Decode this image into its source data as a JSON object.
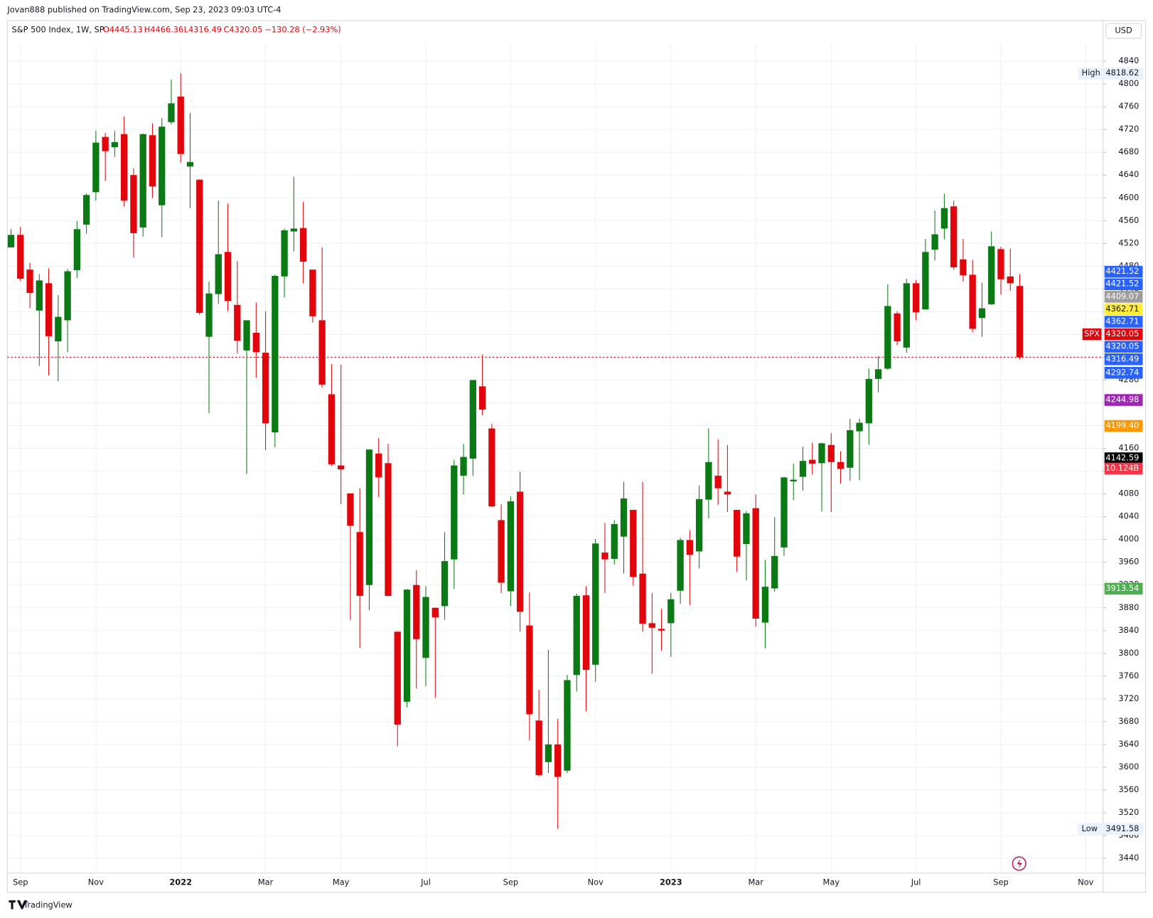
{
  "header": {
    "published": "Jovan888 published on TradingView.com, Sep 23, 2023 09:03 UTC-4",
    "currency": "USD",
    "brand": "TradingView"
  },
  "chart_data": {
    "type": "candlestick",
    "title": "S&P 500 Index, 1W, SP",
    "legend_values": [
      "O4445.13",
      "H4466.36",
      "L4316.49",
      "C4320.05",
      "−130.28 (−2.93%)"
    ],
    "up_color": "#0b7a14",
    "down_color": "#e0060c",
    "categories": [
      null,
      "Sep",
      null,
      null,
      null,
      null,
      null,
      null,
      null,
      "Nov",
      null,
      null,
      null,
      null,
      null,
      null,
      null,
      null,
      "2022",
      null,
      null,
      null,
      null,
      null,
      null,
      null,
      null,
      "Mar",
      null,
      null,
      null,
      null,
      null,
      null,
      null,
      "May",
      null,
      null,
      null,
      null,
      null,
      null,
      null,
      null,
      "Jul",
      null,
      null,
      null,
      null,
      null,
      null,
      null,
      null,
      "Sep",
      null,
      null,
      null,
      null,
      null,
      null,
      null,
      null,
      "Nov",
      null,
      null,
      null,
      null,
      null,
      null,
      null,
      "2023",
      null,
      null,
      null,
      null,
      null,
      null,
      null,
      null,
      "Mar",
      null,
      null,
      null,
      null,
      null,
      null,
      null,
      "May",
      null,
      null,
      null,
      null,
      null,
      null,
      null,
      null,
      "Jul",
      null,
      null,
      null,
      null,
      null,
      null,
      null,
      null,
      "Sep",
      null,
      null,
      null,
      null,
      null,
      null,
      null,
      null,
      "Nov"
    ],
    "open": [
      4513,
      4535,
      4474,
      4402,
      4450,
      4348,
      4385,
      4473,
      4553,
      4610,
      4707,
      4689,
      4712,
      4640,
      4548,
      4710,
      4587,
      4733,
      4778,
      4655,
      4632,
      4356,
      4431,
      4505,
      4412,
      4332,
      4363,
      4328,
      4188,
      4462,
      4541,
      4547,
      4474,
      4385,
      4255,
      4130,
      4081,
      4013,
      3920,
      4151,
      4134,
      3838,
      3715,
      3920,
      3792,
      3880,
      3883,
      3965,
      4112,
      4142,
      4269,
      4195,
      4034,
      3909,
      4084,
      3849,
      3682,
      3609,
      3640,
      3594,
      3762,
      3902,
      3780,
      3977,
      3966,
      4005,
      4052,
      3940,
      3853,
      3843,
      3853,
      3910,
      3999,
      3979,
      4070,
      4112,
      4084,
      4052,
      3992,
      4055,
      3854,
      3914,
      3986,
      4102,
      4110,
      4140,
      4134,
      4166,
      4136,
      4126,
      4190,
      4204,
      4282,
      4300,
      4397,
      4337,
      4450,
      4404,
      4509,
      4546,
      4585,
      4492,
      4465,
      4389,
      4413,
      4510,
      4462,
      4445.13,
      null,
      null,
      null,
      null,
      null,
      null,
      null
    ],
    "high": [
      4545,
      4549,
      4486,
      4466,
      4476,
      4429,
      4475,
      4559,
      4608,
      4718,
      4714,
      4718,
      4743,
      4652,
      4713,
      4731,
      4740,
      4808,
      4818.62,
      4749,
      4632,
      4453,
      4595,
      4590,
      4489,
      4385,
      4416,
      4401,
      4465,
      4546,
      4637,
      4593,
      4471,
      4513,
      4308,
      4307,
      4081,
      4090,
      4158,
      4178,
      4168,
      3838,
      3913,
      3946,
      3918,
      3880,
      4013,
      4140,
      4168,
      4280,
      4325,
      4203,
      4062,
      4076,
      4119,
      3907,
      3736,
      3806,
      3685,
      3762,
      3905,
      3918,
      4001,
      4029,
      4034,
      4101,
      4052,
      4101,
      3906,
      3878,
      3906,
      4003,
      4016,
      4095,
      4195,
      4176,
      4166,
      4052,
      4050,
      4079,
      3964,
      4039,
      4110,
      4133,
      4163,
      4170,
      4170,
      4187,
      4155,
      4212,
      4212,
      4300,
      4322,
      4448,
      4401,
      4458,
      4456,
      4528,
      4578,
      4607,
      4595,
      4528,
      4491,
      4451,
      4541,
      4514,
      4511,
      4466.36,
      null,
      null,
      null,
      null,
      null,
      null,
      null
    ],
    "low": [
      4513,
      4454,
      4406,
      4305,
      4288,
      4278,
      4329,
      4459,
      4537,
      4595,
      4630,
      4672,
      4585,
      4495,
      4532,
      4600,
      4531,
      4729,
      4662,
      4582,
      4395,
      4222,
      4414,
      4401,
      4327,
      4115,
      4284,
      4157,
      4162,
      4425,
      4506,
      4450,
      4381,
      4267,
      4129,
      4062,
      3859,
      3810,
      3876,
      4074,
      3900,
      3637,
      3705,
      3738,
      3742,
      3722,
      3859,
      3913,
      4079,
      4112,
      4218,
      4057,
      3906,
      3883,
      3838,
      3647,
      3584,
      3590,
      3491.58,
      3590,
      3733,
      3698,
      3750,
      3906,
      3956,
      3940,
      3919,
      3838,
      3764,
      3805,
      3794,
      3887,
      3885,
      3949,
      4037,
      4061,
      4048,
      3943,
      3928,
      3847,
      3809,
      3908,
      3971,
      4069,
      4086,
      4114,
      4049,
      4048,
      4098,
      4103,
      4104,
      4166,
      4258,
      4298,
      4341,
      4328,
      4385,
      4404,
      4490,
      4527,
      4474,
      4453,
      4364,
      4356,
      4412,
      4430,
      4437,
      4316.49,
      null,
      null,
      null,
      null,
      null,
      null,
      null
    ],
    "close": [
      4535,
      4458,
      4433,
      4455,
      4357,
      4391,
      4471,
      4545,
      4605,
      4697,
      4682,
      4698,
      4595,
      4538,
      4712,
      4620,
      4725,
      4766,
      4677,
      4663,
      4398,
      4432,
      4501,
      4419,
      4349,
      4385,
      4329,
      4204,
      4463,
      4543,
      4546,
      4488,
      4392,
      4272,
      4132,
      4123,
      4024,
      3901,
      4158,
      4109,
      3901,
      3675,
      3912,
      3825,
      3899,
      3863,
      3962,
      4130,
      4145,
      4280,
      4228,
      4058,
      3924,
      4067,
      3873,
      3693,
      3586,
      3640,
      3583,
      3753,
      3901,
      3771,
      3993,
      3965,
      4027,
      4072,
      3934,
      3852,
      3845,
      3840,
      3895,
      3999,
      3973,
      4071,
      4136,
      4090,
      4079,
      3970,
      4046,
      3861,
      3917,
      3971,
      4109,
      4105,
      4138,
      4133,
      4169,
      4136,
      4124,
      4192,
      4205,
      4282,
      4299,
      4410,
      4348,
      4450,
      4399,
      4505,
      4536,
      4582,
      4478,
      4464,
      4370,
      4406,
      4515,
      4457,
      4450,
      4320.05,
      null,
      null,
      null,
      null,
      null,
      null,
      null
    ],
    "ylim": [
      3414,
      4870
    ],
    "yticks": [
      4840,
      4800,
      4760,
      4720,
      4680,
      4640,
      4600,
      4560,
      4520,
      4480,
      4440,
      4400,
      4360,
      4320,
      4280,
      4240,
      4200,
      4160,
      4120,
      4080,
      4040,
      4000,
      3960,
      3920,
      3880,
      3840,
      3800,
      3760,
      3720,
      3680,
      3640,
      3600,
      3560,
      3520,
      3480,
      3440
    ],
    "last_price": {
      "value": 4320.05,
      "label": "4320.05",
      "symbol": "SPX",
      "color": "#e0060c"
    },
    "high_mark": {
      "name": "High",
      "value": 4818.62,
      "label": "4818.62"
    },
    "low_mark": {
      "name": "Low",
      "value": 3491.58,
      "label": "3491.58"
    },
    "price_tags": [
      {
        "value": 4421.52,
        "label": "4421.52",
        "color": "#2962ff"
      },
      {
        "value": 4421.52,
        "label": "4421.52",
        "color": "#2962ff"
      },
      {
        "value": 4409.07,
        "label": "4409.07",
        "color": "#9e9e9e"
      },
      {
        "value": 4362.71,
        "label": "4362.71",
        "color": "#ffeb3b"
      },
      {
        "value": 4362.71,
        "label": "4362.71",
        "color": "#2962ff"
      },
      {
        "value": 4320.05,
        "label": "4320.05",
        "color": "#2962ff"
      },
      {
        "value": 4316.49,
        "label": "4316.49",
        "color": "#2962ff"
      },
      {
        "value": 4292.74,
        "label": "4292.74",
        "color": "#2962ff"
      },
      {
        "value": 4244.98,
        "label": "4244.98",
        "color": "#9c27b0"
      },
      {
        "value": 4199.4,
        "label": "4199.40",
        "color": "#ff9800"
      },
      {
        "value": 4142.59,
        "label": "4142.59",
        "color": "#000000"
      },
      {
        "value": 3913.54,
        "label": "3913.54",
        "color": "#4caf50"
      }
    ],
    "volume_label": "10.124B"
  }
}
